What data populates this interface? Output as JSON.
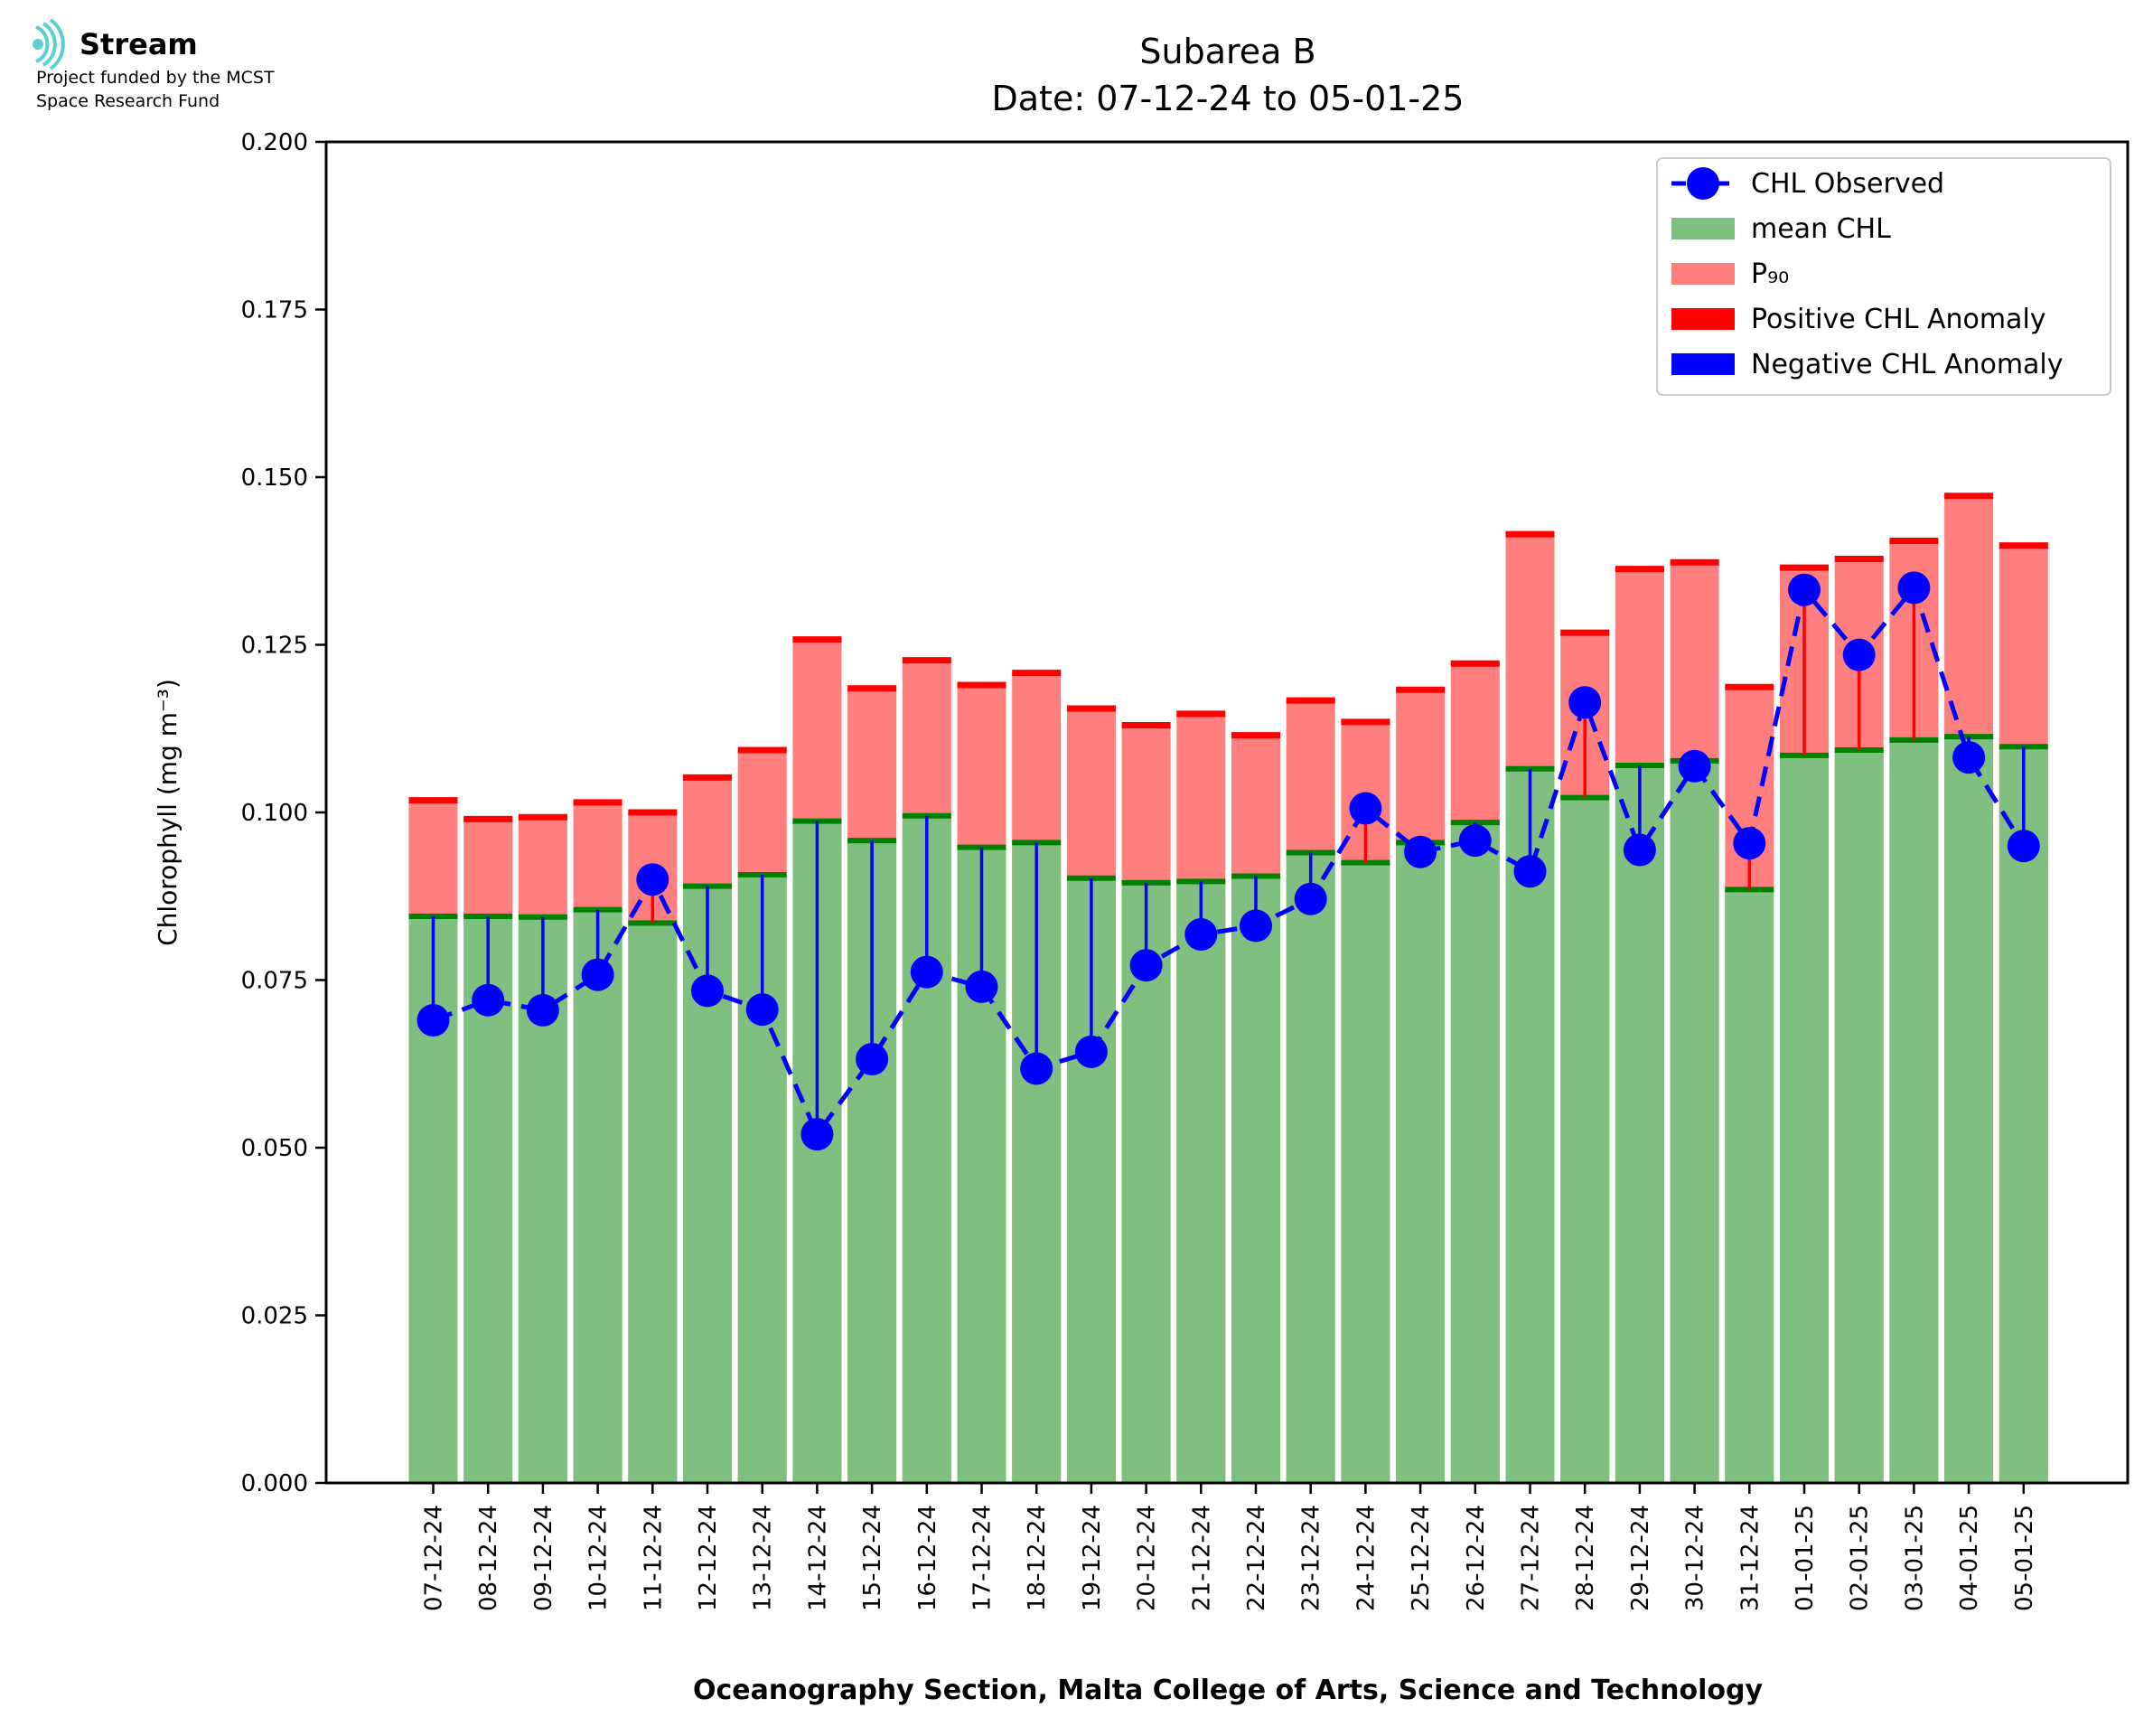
{
  "logo": {
    "name": "Stream",
    "line1": "Project funded by the MCST",
    "line2": "Space Research Fund"
  },
  "chart_data": {
    "type": "bar",
    "title": "Subarea B",
    "subtitle": "Date: 07-12-24 to 05-01-25",
    "xlabel": "Oceanography Section, Malta College of Arts, Science and Technology",
    "ylabel": "Chlorophyll (mg m⁻³)",
    "ylim": [
      0,
      0.2
    ],
    "yticks": [
      "0.000",
      "0.025",
      "0.050",
      "0.075",
      "0.100",
      "0.125",
      "0.150",
      "0.175",
      "0.200"
    ],
    "grid": false,
    "legend_position": "top-right",
    "categories": [
      "07-12-24",
      "08-12-24",
      "09-12-24",
      "10-12-24",
      "11-12-24",
      "12-12-24",
      "13-12-24",
      "14-12-24",
      "15-12-24",
      "16-12-24",
      "17-12-24",
      "18-12-24",
      "19-12-24",
      "20-12-24",
      "21-12-24",
      "22-12-24",
      "23-12-24",
      "24-12-24",
      "25-12-24",
      "26-12-24",
      "27-12-24",
      "28-12-24",
      "29-12-24",
      "30-12-24",
      "31-12-24",
      "01-01-25",
      "02-01-25",
      "03-01-25",
      "04-01-25",
      "05-01-25"
    ],
    "series": [
      {
        "name": "CHL Observed",
        "type": "line",
        "color": "#0000ff",
        "values": [
          0.069,
          0.072,
          0.0705,
          0.0758,
          0.09,
          0.0734,
          0.0706,
          0.052,
          0.0632,
          0.0762,
          0.074,
          0.0618,
          0.0643,
          0.0772,
          0.0818,
          0.0831,
          0.0871,
          0.1006,
          0.0941,
          0.0958,
          0.0912,
          0.1164,
          0.0944,
          0.1069,
          0.0954,
          0.1332,
          0.1235,
          0.1335,
          0.1082,
          0.095
        ]
      },
      {
        "name": "mean CHL",
        "type": "bar",
        "color": "#7fbf7f",
        "values": [
          0.0845,
          0.0845,
          0.0844,
          0.0855,
          0.0835,
          0.089,
          0.0907,
          0.0987,
          0.0958,
          0.0995,
          0.0948,
          0.0955,
          0.0902,
          0.0895,
          0.0897,
          0.0905,
          0.094,
          0.0925,
          0.0955,
          0.0985,
          0.1065,
          0.1022,
          0.107,
          0.1077,
          0.0885,
          0.1085,
          0.1093,
          0.1108,
          0.1113,
          0.1098
        ]
      },
      {
        "name": "P₉₀",
        "type": "bar",
        "color": "#ff7f7f",
        "values": [
          0.1018,
          0.099,
          0.0993,
          0.1015,
          0.1,
          0.1052,
          0.1093,
          0.1258,
          0.1185,
          0.1227,
          0.119,
          0.1208,
          0.1155,
          0.113,
          0.1147,
          0.1115,
          0.1167,
          0.1135,
          0.1183,
          0.1222,
          0.1415,
          0.1268,
          0.1363,
          0.1373,
          0.1187,
          0.1365,
          0.1378,
          0.1405,
          0.1472,
          0.1398
        ]
      }
    ],
    "legend": [
      {
        "label": "CHL Observed",
        "kind": "line-marker",
        "color": "#0000ff"
      },
      {
        "label": "mean CHL",
        "kind": "patch",
        "color": "#7fbf7f"
      },
      {
        "label": "P₉₀",
        "kind": "patch",
        "color": "#ff7f7f"
      },
      {
        "label": "Positive CHL Anomaly",
        "kind": "patch",
        "color": "#ff0000"
      },
      {
        "label": "Negative CHL Anomaly",
        "kind": "patch",
        "color": "#0000ff"
      }
    ],
    "colors": {
      "positive_anomaly": "#ff0000",
      "negative_anomaly": "#0000ff",
      "mean_edge": "#008000",
      "logo_accent": "#5ad0d0"
    }
  }
}
